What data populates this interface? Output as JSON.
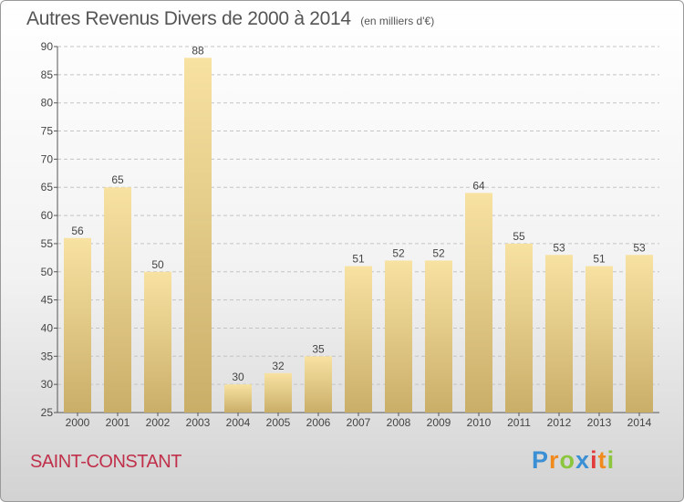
{
  "chart_data": {
    "type": "bar",
    "title": "Autres Revenus Divers de 2000 à 2014",
    "subtitle": "(en milliers d'€)",
    "categories": [
      "2000",
      "2001",
      "2002",
      "2003",
      "2004",
      "2005",
      "2006",
      "2007",
      "2008",
      "2009",
      "2010",
      "2011",
      "2012",
      "2013",
      "2014"
    ],
    "values": [
      56,
      65,
      50,
      88,
      30,
      32,
      35,
      51,
      52,
      52,
      64,
      55,
      53,
      51,
      53
    ],
    "xlabel": "",
    "ylabel": "",
    "ylim": [
      25,
      90
    ],
    "yticks": [
      25,
      30,
      35,
      40,
      45,
      50,
      55,
      60,
      65,
      70,
      75,
      80,
      85,
      90
    ],
    "grid": "horizontal-dashed",
    "legend": "none",
    "bar_color_top": "#f8e2a2",
    "bar_color_bottom": "#c9ae68"
  },
  "location": "SAINT-CONSTANT",
  "logo": {
    "letters": [
      "P",
      "r",
      "o",
      "x",
      "i",
      "t",
      "i"
    ],
    "colors": [
      "#3b8fd4",
      "#f08a1c",
      "#8cc63f",
      "#3b8fd4",
      "#e23b3b",
      "#f08a1c",
      "#8cc63f"
    ]
  }
}
